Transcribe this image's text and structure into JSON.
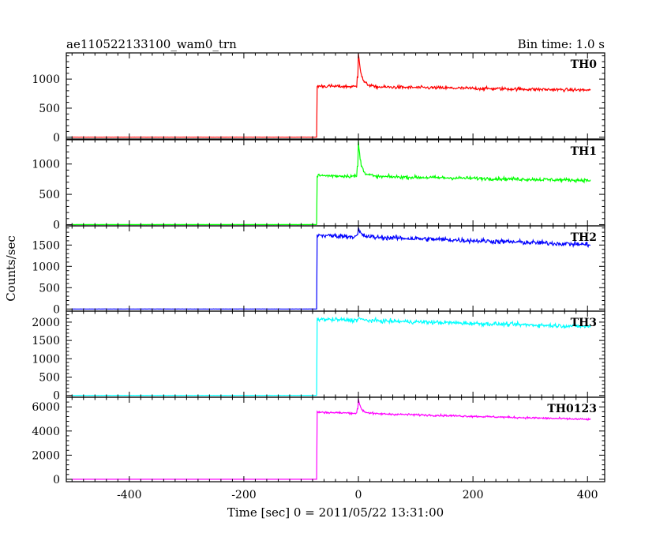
{
  "chart_data": {
    "type": "line",
    "title_left": "ae110522133100_wam0_trn",
    "title_right": "Bin time: 1.0 s",
    "xlabel": "Time [sec] 0 = 2011/05/22 13:31:00",
    "ylabel": "Counts/sec",
    "xlim": [
      -510,
      430
    ],
    "xticks": [
      -400,
      -200,
      0,
      200,
      400
    ],
    "grid": false,
    "legend": "none",
    "panels": [
      {
        "name": "TH0",
        "color": "#ff0000",
        "ylim": [
          -30,
          1450
        ],
        "yticks": [
          0,
          500,
          1000
        ],
        "pre_level": 0,
        "onset_time": -72,
        "post_level_start": 880,
        "post_level_end": 810,
        "noise": 28,
        "spike_time": 0,
        "spike_peak": 1450
      },
      {
        "name": "TH1",
        "color": "#00ff00",
        "ylim": [
          -20,
          1400
        ],
        "yticks": [
          0,
          500,
          1000
        ],
        "pre_level": 0,
        "onset_time": -72,
        "post_level_start": 810,
        "post_level_end": 730,
        "noise": 28,
        "spike_time": 0,
        "spike_peak": 1330
      },
      {
        "name": "TH2",
        "color": "#0000ff",
        "ylim": [
          -50,
          1950
        ],
        "yticks": [
          0,
          500,
          1000,
          1500
        ],
        "pre_level": 0,
        "onset_time": -72,
        "post_level_start": 1730,
        "post_level_end": 1510,
        "noise": 55,
        "spike_time": 0,
        "spike_peak": 1900
      },
      {
        "name": "TH3",
        "color": "#00ffff",
        "ylim": [
          -50,
          2300
        ],
        "yticks": [
          0,
          500,
          1000,
          1500,
          2000
        ],
        "pre_level": 0,
        "onset_time": -72,
        "post_level_start": 2080,
        "post_level_end": 1880,
        "noise": 55,
        "spike_time": 0,
        "spike_peak": 2150
      },
      {
        "name": "TH0123",
        "color": "#ff00ff",
        "ylim": [
          -200,
          6800
        ],
        "yticks": [
          0,
          2000,
          4000,
          6000
        ],
        "pre_level": 0,
        "onset_time": -72,
        "post_level_start": 5560,
        "post_level_end": 4960,
        "noise": 80,
        "spike_time": 0,
        "spike_peak": 6650
      }
    ]
  }
}
